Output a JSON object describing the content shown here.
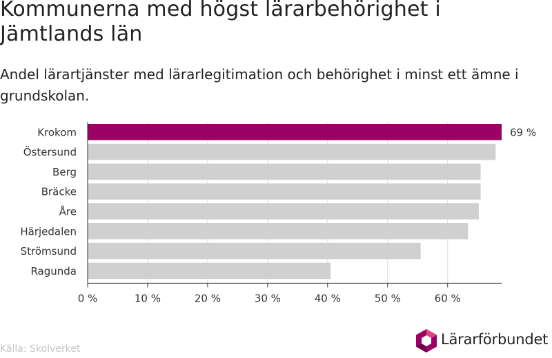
{
  "title": "Kommunerna med högst lärarbehörighet i Jämtlands län",
  "subtitle": "Andel lärartjänster med lärarlegitimation och behörighet i minst ett ämne i grundskolan.",
  "source": "Källa: Skolverket",
  "brand": "Lärarförbundet",
  "colors": {
    "highlight": "#9b0067",
    "bar": "#d0d0d0",
    "grid": "#dddddd"
  },
  "chart_data": {
    "type": "bar",
    "orientation": "horizontal",
    "title": "Kommunerna med högst lärarbehörighet i Jämtlands län",
    "subtitle": "Andel lärartjänster med lärarlegitimation och behörighet i minst ett ämne i grundskolan.",
    "categories": [
      "Krokom",
      "Östersund",
      "Berg",
      "Bräcke",
      "Åre",
      "Härjedalen",
      "Strömsund",
      "Ragunda"
    ],
    "values": [
      69,
      68,
      65.5,
      65.5,
      65.2,
      63.4,
      55.5,
      40.5
    ],
    "data_labels": [
      {
        "category": "Krokom",
        "label": "69 %"
      }
    ],
    "highlight": "Krokom",
    "xlim": [
      0,
      69
    ],
    "xticks": [
      0,
      10,
      20,
      30,
      40,
      50,
      60
    ],
    "xtick_labels": [
      "0 %",
      "10 %",
      "20 %",
      "30 %",
      "40 %",
      "50 %",
      "60 %"
    ],
    "grid": true,
    "legend": "none"
  }
}
